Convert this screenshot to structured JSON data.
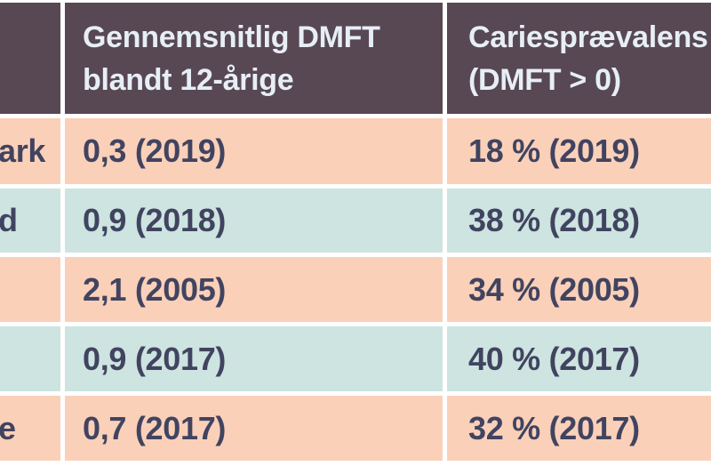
{
  "table": {
    "header": {
      "country_label": "",
      "dmft": {
        "line1": "Gennemsnitlig DMFT",
        "line2": "blandt 12-årige"
      },
      "prevalence": {
        "line1": "Cariesprævalens",
        "line2": "(DMFT > 0)"
      }
    },
    "rows": [
      {
        "country_fragment": "ark",
        "dmft": "0,3 (2019)",
        "prevalence": "18 % (2019)"
      },
      {
        "country_fragment": "d",
        "dmft": "0,9 (2018)",
        "prevalence": "38 % (2018)"
      },
      {
        "country_fragment": "",
        "dmft": "2,1 (2005)",
        "prevalence": "34 % (2005)"
      },
      {
        "country_fragment": "",
        "dmft": "0,9 (2017)",
        "prevalence": "40 % (2017)"
      },
      {
        "country_fragment": "e",
        "dmft": "0,7 (2017)",
        "prevalence": "32 % (2017)"
      }
    ],
    "colors": {
      "header_bg": "#574854",
      "header_text": "#e7eef6",
      "row_peach": "#fbd0b9",
      "row_teal": "#cde4e0",
      "data_text": "#414460",
      "border": "#ffffff"
    }
  }
}
